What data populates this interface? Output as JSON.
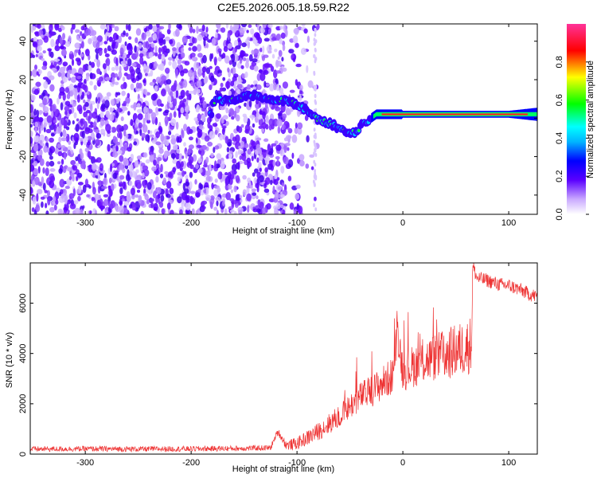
{
  "figure_title": "C2E5.2026.005.18.59.R22",
  "colors": {
    "snr_line": "#ee3333",
    "colormap": [
      "#ffffff",
      "#b98cff",
      "#5a00ff",
      "#0000ff",
      "#00ffff",
      "#00ff00",
      "#ffff00",
      "#ff0000",
      "#ff3399"
    ]
  },
  "chart_data": [
    {
      "type": "heatmap",
      "title": "",
      "xlabel": "Height of straight line (km)",
      "ylabel": "Frequency (Hz)",
      "xlim": [
        -352,
        127
      ],
      "ylim": [
        -50,
        49
      ],
      "xticks": [
        -300,
        -200,
        -100,
        0,
        100
      ],
      "yticks": [
        -40,
        -20,
        0,
        20,
        40
      ],
      "colorbar": {
        "label": "Normalized spectral amplitude",
        "range": [
          0,
          1
        ],
        "ticks": [
          0.0,
          0.2,
          0.4,
          0.6,
          0.8
        ]
      },
      "ridge": {
        "description_points": [
          {
            "x": -180,
            "y": 9
          },
          {
            "x": -160,
            "y": 10
          },
          {
            "x": -145,
            "y": 12
          },
          {
            "x": -130,
            "y": 10
          },
          {
            "x": -110,
            "y": 9
          },
          {
            "x": -95,
            "y": 6
          },
          {
            "x": -85,
            "y": 1
          },
          {
            "x": -70,
            "y": -3
          },
          {
            "x": -60,
            "y": -5
          },
          {
            "x": -50,
            "y": -9
          },
          {
            "x": -45,
            "y": -7
          },
          {
            "x": -35,
            "y": -2
          },
          {
            "x": -25,
            "y": 2
          },
          {
            "x": -10,
            "y": 2
          },
          {
            "x": 0,
            "y": 2
          },
          {
            "x": 50,
            "y": 2
          },
          {
            "x": 100,
            "y": 2
          },
          {
            "x": 127,
            "y": 2
          }
        ]
      }
    },
    {
      "type": "line",
      "title": "",
      "xlabel": "Height of straight line (km)",
      "ylabel": "SNR (10 * v/v)",
      "xlim": [
        -352,
        127
      ],
      "ylim": [
        0,
        7600
      ],
      "xticks": [
        -300,
        -200,
        -100,
        0,
        100
      ],
      "yticks": [
        0,
        2000,
        4000,
        6000
      ],
      "series": [
        {
          "points": [
            {
              "x": -352,
              "y": 200
            },
            {
              "x": -300,
              "y": 210
            },
            {
              "x": -250,
              "y": 200
            },
            {
              "x": -200,
              "y": 210
            },
            {
              "x": -150,
              "y": 230
            },
            {
              "x": -125,
              "y": 250
            },
            {
              "x": -118,
              "y": 900
            },
            {
              "x": -110,
              "y": 350
            },
            {
              "x": -100,
              "y": 420
            },
            {
              "x": -90,
              "y": 650
            },
            {
              "x": -80,
              "y": 900
            },
            {
              "x": -70,
              "y": 1200
            },
            {
              "x": -60,
              "y": 1500
            },
            {
              "x": -50,
              "y": 1900
            },
            {
              "x": -40,
              "y": 2300
            },
            {
              "x": -30,
              "y": 2500
            },
            {
              "x": -20,
              "y": 2800
            },
            {
              "x": -10,
              "y": 3100
            },
            {
              "x": -5,
              "y": 4900
            },
            {
              "x": 0,
              "y": 3300
            },
            {
              "x": 10,
              "y": 3500
            },
            {
              "x": 20,
              "y": 3700
            },
            {
              "x": 30,
              "y": 3850
            },
            {
              "x": 40,
              "y": 3950
            },
            {
              "x": 50,
              "y": 4100
            },
            {
              "x": 60,
              "y": 4250
            },
            {
              "x": 65,
              "y": 4400
            },
            {
              "x": 66,
              "y": 7500
            },
            {
              "x": 70,
              "y": 7000
            },
            {
              "x": 80,
              "y": 6900
            },
            {
              "x": 90,
              "y": 6750
            },
            {
              "x": 100,
              "y": 6700
            },
            {
              "x": 110,
              "y": 6550
            },
            {
              "x": 120,
              "y": 6350
            },
            {
              "x": 127,
              "y": 6250
            }
          ]
        }
      ]
    }
  ]
}
